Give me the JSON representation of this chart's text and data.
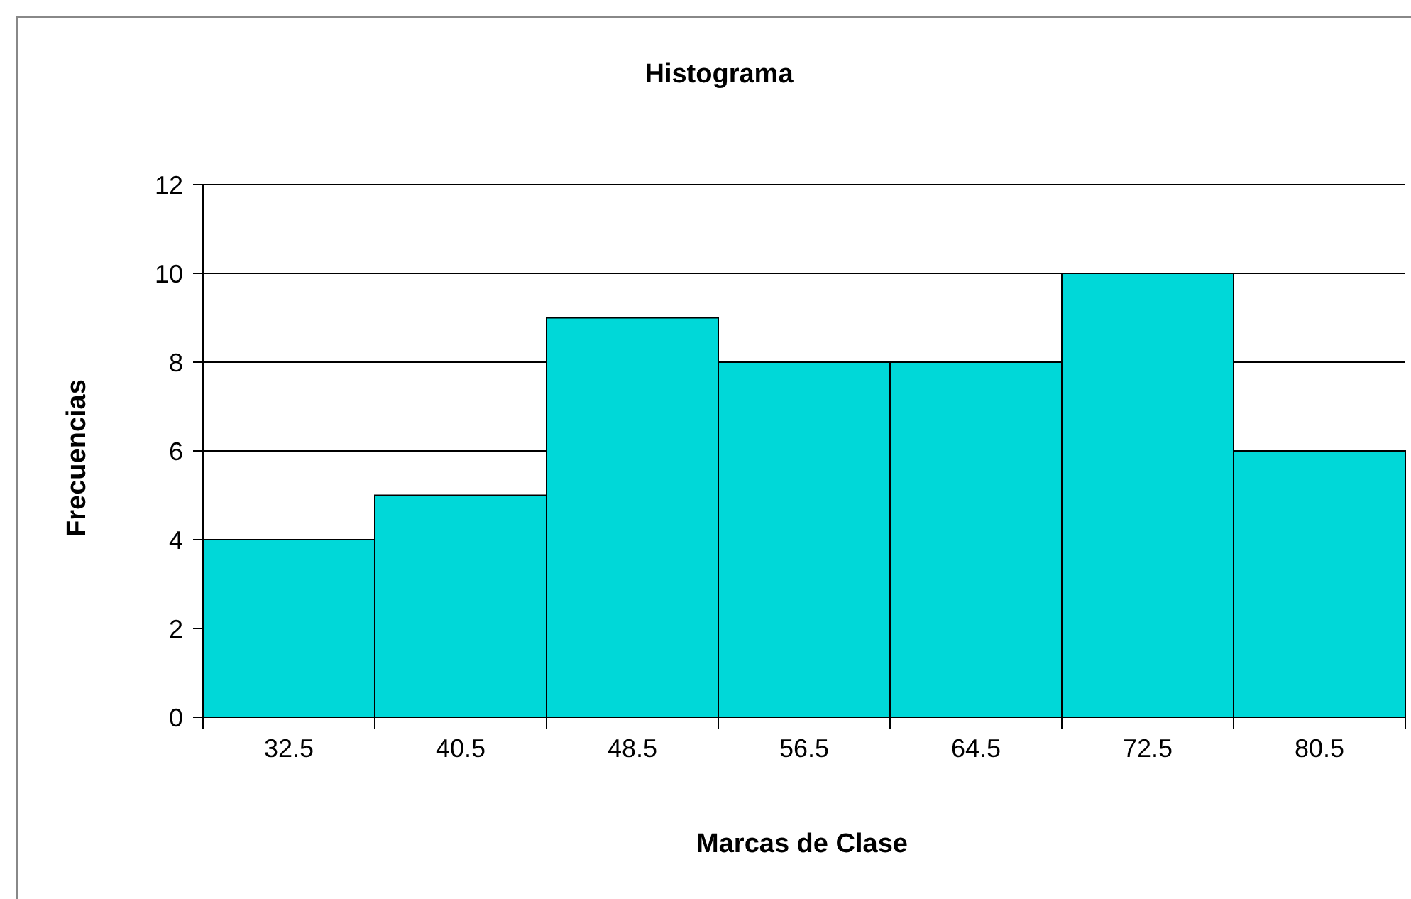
{
  "chart_data": {
    "type": "bar",
    "title": "Histograma",
    "xlabel": "Marcas de Clase",
    "ylabel": "Frecuencias",
    "categories": [
      "32.5",
      "40.5",
      "48.5",
      "56.5",
      "64.5",
      "72.5",
      "80.5"
    ],
    "values": [
      4,
      5,
      9,
      8,
      8,
      10,
      6
    ],
    "color": "#00d8d8",
    "ylim": [
      0,
      12
    ],
    "yticks": [
      0,
      2,
      4,
      6,
      8,
      10,
      12
    ],
    "grid": "y"
  }
}
